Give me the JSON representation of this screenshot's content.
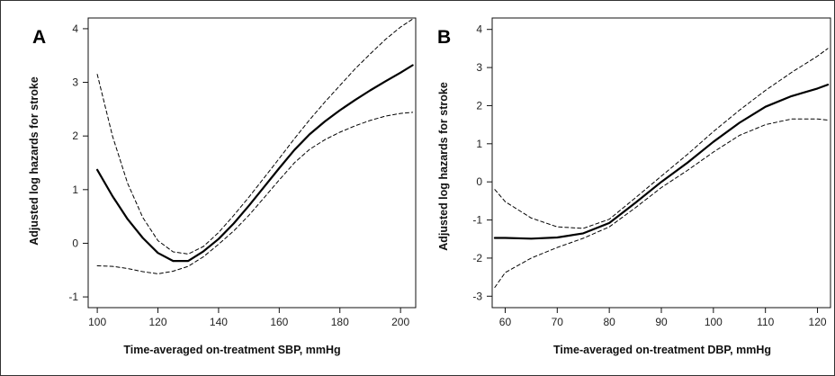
{
  "chart_data": [
    {
      "type": "line",
      "panel_label": "A",
      "xlabel": "Time-averaged on-treatment SBP, mmHg",
      "ylabel": "Adjusted log hazards for stroke",
      "xlim": [
        97,
        205
      ],
      "ylim": [
        -1.2,
        4.2
      ],
      "xticks": [
        100,
        120,
        140,
        160,
        180,
        200
      ],
      "yticks": [
        -1,
        0,
        1,
        2,
        3,
        4
      ],
      "grid": false,
      "series": [
        {
          "style": "solid",
          "x": [
            100,
            105,
            110,
            115,
            120,
            125,
            130,
            135,
            140,
            145,
            150,
            155,
            160,
            165,
            170,
            175,
            180,
            185,
            190,
            195,
            200,
            204
          ],
          "y": [
            1.37,
            0.88,
            0.45,
            0.1,
            -0.18,
            -0.33,
            -0.33,
            -0.15,
            0.08,
            0.37,
            0.7,
            1.05,
            1.4,
            1.74,
            2.03,
            2.27,
            2.48,
            2.67,
            2.85,
            3.02,
            3.18,
            3.32
          ]
        },
        {
          "style": "dashed",
          "x": [
            100,
            105,
            110,
            115,
            120,
            125,
            130,
            135,
            140,
            145,
            150,
            155,
            160,
            165,
            170,
            175,
            180,
            185,
            190,
            195,
            200,
            204
          ],
          "y": [
            3.15,
            2.0,
            1.12,
            0.48,
            0.05,
            -0.16,
            -0.2,
            -0.06,
            0.2,
            0.52,
            0.86,
            1.22,
            1.58,
            1.95,
            2.3,
            2.63,
            2.94,
            3.25,
            3.53,
            3.8,
            4.03,
            4.18
          ]
        },
        {
          "style": "dashed",
          "x": [
            100,
            105,
            110,
            115,
            120,
            125,
            130,
            135,
            140,
            145,
            150,
            155,
            160,
            165,
            170,
            175,
            180,
            185,
            190,
            195,
            200,
            204
          ],
          "y": [
            -0.42,
            -0.43,
            -0.47,
            -0.53,
            -0.57,
            -0.52,
            -0.43,
            -0.25,
            -0.02,
            0.23,
            0.52,
            0.85,
            1.18,
            1.5,
            1.75,
            1.93,
            2.07,
            2.19,
            2.29,
            2.37,
            2.42,
            2.44
          ]
        }
      ]
    },
    {
      "type": "line",
      "panel_label": "B",
      "xlabel": "Time-averaged on-treatment DBP, mmHg",
      "ylabel": "Adjusted log hazards for stroke",
      "xlim": [
        57.5,
        122.5
      ],
      "ylim": [
        -3.3,
        4.3
      ],
      "xticks": [
        60,
        70,
        80,
        90,
        100,
        110,
        120
      ],
      "yticks": [
        -3,
        -2,
        -1,
        0,
        1,
        2,
        3,
        4
      ],
      "grid": false,
      "series": [
        {
          "style": "solid",
          "x": [
            58,
            60,
            65,
            70,
            75,
            80,
            85,
            90,
            95,
            100,
            105,
            110,
            115,
            120,
            122
          ],
          "y": [
            -1.47,
            -1.47,
            -1.49,
            -1.46,
            -1.35,
            -1.08,
            -0.55,
            0.0,
            0.5,
            1.05,
            1.55,
            1.97,
            2.25,
            2.45,
            2.55
          ]
        },
        {
          "style": "dashed",
          "x": [
            58,
            60,
            65,
            70,
            75,
            80,
            85,
            90,
            95,
            100,
            105,
            110,
            115,
            120,
            122
          ],
          "y": [
            -0.2,
            -0.52,
            -0.95,
            -1.18,
            -1.22,
            -0.98,
            -0.42,
            0.15,
            0.72,
            1.32,
            1.88,
            2.4,
            2.87,
            3.3,
            3.5
          ]
        },
        {
          "style": "dashed",
          "x": [
            58,
            60,
            65,
            70,
            75,
            80,
            85,
            90,
            95,
            100,
            105,
            110,
            115,
            120,
            122
          ],
          "y": [
            -2.77,
            -2.38,
            -2.0,
            -1.72,
            -1.48,
            -1.18,
            -0.68,
            -0.15,
            0.3,
            0.78,
            1.22,
            1.5,
            1.65,
            1.65,
            1.62
          ]
        }
      ]
    }
  ]
}
